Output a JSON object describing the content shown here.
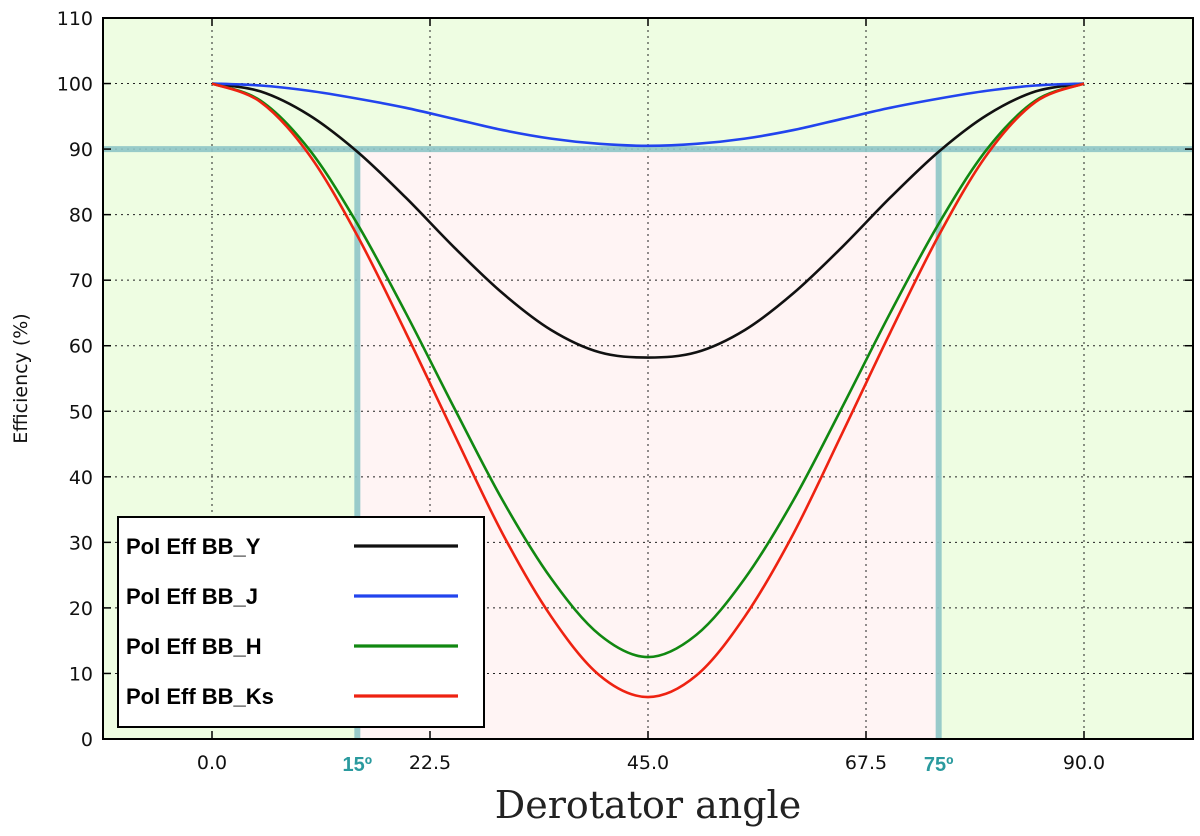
{
  "chart_data": {
    "type": "line",
    "title": "",
    "xlabel": "Derotator angle",
    "ylabel": "Efficiency (%)",
    "xlim": [
      -11.25,
      101.25
    ],
    "ylim": [
      0,
      110
    ],
    "xticks": [
      0.0,
      22.5,
      45.0,
      67.5,
      90.0
    ],
    "xtick_labels": [
      "0.0",
      "22.5",
      "45.0",
      "67.5",
      "90.0"
    ],
    "yticks": [
      0,
      10,
      20,
      30,
      40,
      50,
      60,
      70,
      80,
      90,
      100,
      110
    ],
    "ytick_labels": [
      "0",
      "10",
      "20",
      "30",
      "40",
      "50",
      "60",
      "70",
      "80",
      "90",
      "100",
      "110"
    ],
    "grid": true,
    "threshold": 90,
    "markers": [
      {
        "x": 15,
        "label": "15º"
      },
      {
        "x": 75,
        "label": "75º"
      }
    ],
    "colors": {
      "ok_region": "#eefde2",
      "low_region": "#fff4f4",
      "marker": "#8fc6c7",
      "marker_text": "#2a9a9e"
    },
    "legend_position": "lower-left",
    "x": [
      0,
      5,
      10,
      15,
      20,
      25,
      30,
      35,
      40,
      45,
      50,
      55,
      60,
      65,
      70,
      75,
      80,
      85,
      90
    ],
    "series": [
      {
        "name": "Pol Eff BB_Y",
        "color": "#111111",
        "values": [
          100.0,
          98.8,
          95.2,
          89.6,
          82.6,
          75.0,
          68.0,
          62.4,
          59.0,
          58.2,
          59.0,
          62.4,
          68.0,
          75.0,
          82.6,
          89.6,
          95.2,
          98.8,
          100.0
        ]
      },
      {
        "name": "Pol Eff BB_J",
        "color": "#2244ee",
        "values": [
          100.0,
          99.7,
          98.9,
          97.7,
          96.3,
          94.6,
          92.9,
          91.6,
          90.8,
          90.5,
          90.8,
          91.6,
          92.9,
          94.6,
          96.3,
          97.7,
          98.9,
          99.7,
          100.0
        ]
      },
      {
        "name": "Pol Eff BB_H",
        "color": "#118811",
        "values": [
          100.0,
          97.4,
          90.0,
          78.6,
          65.0,
          50.5,
          36.4,
          24.5,
          15.9,
          12.5,
          15.9,
          24.5,
          36.4,
          50.5,
          65.0,
          78.6,
          90.0,
          97.4,
          100.0
        ]
      },
      {
        "name": "Pol Eff BB_Ks",
        "color": "#ee2211",
        "values": [
          100.0,
          97.2,
          89.2,
          76.8,
          62.0,
          46.5,
          31.3,
          18.7,
          9.7,
          6.4,
          9.7,
          18.7,
          31.3,
          46.5,
          62.0,
          76.8,
          89.2,
          97.2,
          100.0
        ]
      }
    ]
  }
}
